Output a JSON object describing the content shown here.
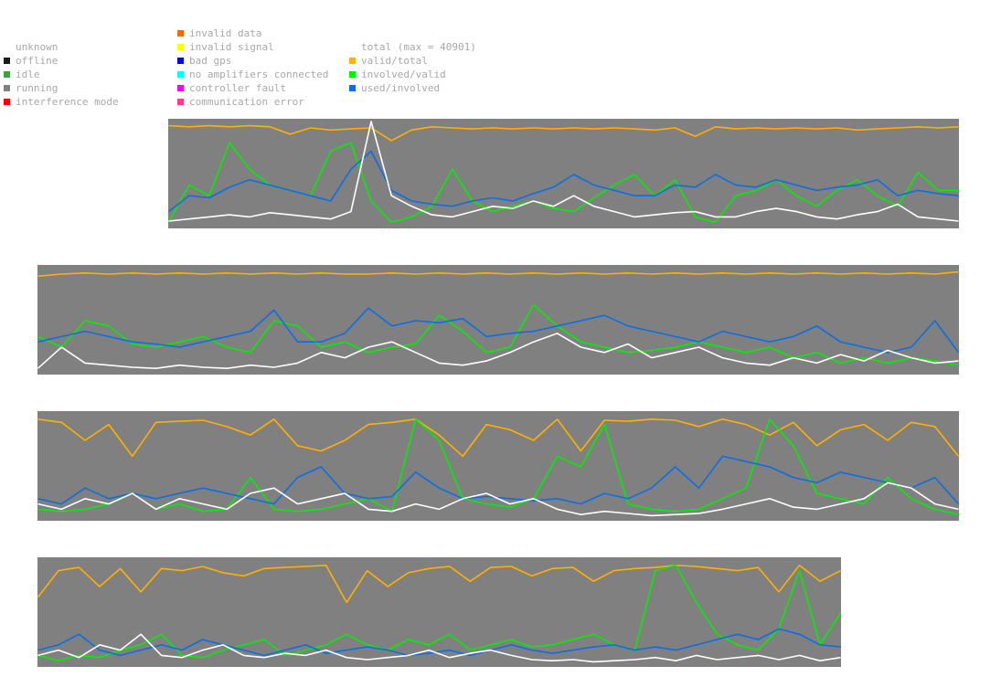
{
  "legend": {
    "status": [
      {
        "label": "unknown",
        "color": "#ffffff"
      },
      {
        "label": "offline",
        "color": "#1a1a1a"
      },
      {
        "label": "idle",
        "color": "#3fa33f"
      },
      {
        "label": "running",
        "color": "#808080"
      },
      {
        "label": "interference mode",
        "color": "#ff0000"
      }
    ],
    "errors": [
      {
        "label": "invalid data",
        "color": "#ff6a00"
      },
      {
        "label": "invalid signal",
        "color": "#ffff00"
      },
      {
        "label": "bad gps",
        "color": "#0000ff"
      },
      {
        "label": "no amplifiers connected",
        "color": "#00ffff"
      },
      {
        "label": "controller fault",
        "color": "#ff00ff"
      },
      {
        "label": "communication error",
        "color": "#ff3c8c"
      }
    ],
    "metrics": [
      {
        "label": "total (max = 40901)",
        "color": "#ffffff"
      },
      {
        "label": "valid/total",
        "color": "#ffb000"
      },
      {
        "label": "involved/valid",
        "color": "#00f000"
      },
      {
        "label": "used/involved",
        "color": "#0a6ee6"
      }
    ]
  },
  "colors": {
    "plot_background": "#808080",
    "total": "#ffffff",
    "valid_total": "#ffb000",
    "involved_valid": "#00f000",
    "used_involved": "#0a6ee6"
  },
  "chart_data": [
    {
      "type": "line",
      "ylim": [
        0,
        1
      ],
      "series": [
        {
          "name": "valid/total",
          "values": [
            0.96,
            0.95,
            0.96,
            0.95,
            0.96,
            0.95,
            0.88,
            0.94,
            0.92,
            0.93,
            0.94,
            0.82,
            0.92,
            0.95,
            0.94,
            0.93,
            0.94,
            0.93,
            0.94,
            0.93,
            0.94,
            0.93,
            0.94,
            0.93,
            0.92,
            0.94,
            0.86,
            0.95,
            0.93,
            0.94,
            0.93,
            0.94,
            0.93,
            0.94,
            0.92,
            0.93,
            0.94,
            0.95,
            0.94,
            0.95
          ]
        },
        {
          "name": "involved/valid",
          "values": [
            0.05,
            0.4,
            0.3,
            0.8,
            0.55,
            0.4,
            0.35,
            0.3,
            0.72,
            0.8,
            0.25,
            0.05,
            0.1,
            0.2,
            0.55,
            0.25,
            0.15,
            0.2,
            0.25,
            0.18,
            0.15,
            0.28,
            0.4,
            0.5,
            0.3,
            0.45,
            0.1,
            0.05,
            0.3,
            0.35,
            0.45,
            0.3,
            0.2,
            0.35,
            0.45,
            0.3,
            0.2,
            0.52,
            0.35,
            0.35
          ]
        },
        {
          "name": "used/involved",
          "values": [
            0.15,
            0.3,
            0.28,
            0.38,
            0.45,
            0.4,
            0.35,
            0.3,
            0.25,
            0.55,
            0.72,
            0.35,
            0.25,
            0.22,
            0.2,
            0.25,
            0.28,
            0.25,
            0.32,
            0.38,
            0.5,
            0.4,
            0.35,
            0.3,
            0.3,
            0.4,
            0.38,
            0.5,
            0.4,
            0.38,
            0.45,
            0.4,
            0.35,
            0.38,
            0.4,
            0.45,
            0.3,
            0.35,
            0.32,
            0.3
          ]
        },
        {
          "name": "total",
          "values": [
            0.06,
            0.08,
            0.1,
            0.12,
            0.1,
            0.14,
            0.12,
            0.1,
            0.08,
            0.15,
            1.0,
            0.3,
            0.2,
            0.12,
            0.1,
            0.15,
            0.2,
            0.18,
            0.25,
            0.2,
            0.3,
            0.2,
            0.15,
            0.1,
            0.12,
            0.14,
            0.15,
            0.1,
            0.1,
            0.15,
            0.18,
            0.15,
            0.1,
            0.08,
            0.12,
            0.15,
            0.22,
            0.1,
            0.08,
            0.06
          ]
        }
      ]
    },
    {
      "type": "line",
      "ylim": [
        0,
        1
      ],
      "series": [
        {
          "name": "valid/total",
          "values": [
            0.92,
            0.94,
            0.95,
            0.94,
            0.95,
            0.94,
            0.95,
            0.94,
            0.95,
            0.94,
            0.95,
            0.94,
            0.95,
            0.94,
            0.94,
            0.95,
            0.94,
            0.95,
            0.94,
            0.95,
            0.94,
            0.95,
            0.94,
            0.95,
            0.94,
            0.95,
            0.94,
            0.95,
            0.94,
            0.95,
            0.94,
            0.95,
            0.94,
            0.95,
            0.94,
            0.95,
            0.94,
            0.95,
            0.94,
            0.96
          ]
        },
        {
          "name": "involved/valid",
          "values": [
            0.35,
            0.25,
            0.5,
            0.45,
            0.28,
            0.25,
            0.3,
            0.35,
            0.25,
            0.2,
            0.5,
            0.45,
            0.25,
            0.3,
            0.2,
            0.25,
            0.28,
            0.55,
            0.4,
            0.2,
            0.25,
            0.65,
            0.45,
            0.3,
            0.25,
            0.2,
            0.22,
            0.25,
            0.3,
            0.25,
            0.2,
            0.25,
            0.15,
            0.2,
            0.1,
            0.15,
            0.1,
            0.15,
            0.12,
            0.08
          ]
        },
        {
          "name": "used/involved",
          "values": [
            0.3,
            0.35,
            0.4,
            0.35,
            0.3,
            0.28,
            0.25,
            0.3,
            0.35,
            0.4,
            0.6,
            0.3,
            0.3,
            0.38,
            0.62,
            0.45,
            0.5,
            0.48,
            0.52,
            0.35,
            0.38,
            0.4,
            0.45,
            0.5,
            0.55,
            0.45,
            0.4,
            0.35,
            0.3,
            0.4,
            0.35,
            0.3,
            0.35,
            0.45,
            0.3,
            0.25,
            0.2,
            0.25,
            0.5,
            0.2
          ]
        },
        {
          "name": "total",
          "values": [
            0.05,
            0.25,
            0.1,
            0.08,
            0.06,
            0.05,
            0.08,
            0.06,
            0.05,
            0.08,
            0.06,
            0.1,
            0.2,
            0.15,
            0.25,
            0.3,
            0.2,
            0.1,
            0.08,
            0.12,
            0.2,
            0.3,
            0.38,
            0.25,
            0.2,
            0.28,
            0.15,
            0.2,
            0.25,
            0.15,
            0.1,
            0.08,
            0.15,
            0.1,
            0.18,
            0.12,
            0.22,
            0.15,
            0.1,
            0.12
          ]
        }
      ]
    },
    {
      "type": "line",
      "ylim": [
        0,
        1
      ],
      "series": [
        {
          "name": "valid/total",
          "values": [
            0.95,
            0.92,
            0.75,
            0.9,
            0.6,
            0.92,
            0.93,
            0.94,
            0.88,
            0.8,
            0.95,
            0.7,
            0.65,
            0.75,
            0.9,
            0.92,
            0.95,
            0.8,
            0.6,
            0.9,
            0.85,
            0.75,
            0.95,
            0.65,
            0.94,
            0.93,
            0.95,
            0.94,
            0.88,
            0.95,
            0.9,
            0.8,
            0.92,
            0.7,
            0.85,
            0.9,
            0.75,
            0.92,
            0.88,
            0.6
          ]
        },
        {
          "name": "involved/valid",
          "values": [
            0.1,
            0.08,
            0.1,
            0.15,
            0.25,
            0.1,
            0.15,
            0.08,
            0.1,
            0.4,
            0.1,
            0.08,
            0.1,
            0.15,
            0.2,
            0.08,
            0.95,
            0.75,
            0.2,
            0.15,
            0.12,
            0.2,
            0.6,
            0.5,
            0.9,
            0.15,
            0.1,
            0.08,
            0.1,
            0.2,
            0.3,
            0.95,
            0.7,
            0.25,
            0.2,
            0.15,
            0.4,
            0.2,
            0.1,
            0.05
          ]
        },
        {
          "name": "used/involved",
          "values": [
            0.2,
            0.15,
            0.3,
            0.2,
            0.25,
            0.2,
            0.25,
            0.3,
            0.25,
            0.2,
            0.15,
            0.4,
            0.5,
            0.25,
            0.2,
            0.22,
            0.45,
            0.3,
            0.2,
            0.22,
            0.2,
            0.18,
            0.2,
            0.15,
            0.25,
            0.2,
            0.3,
            0.5,
            0.3,
            0.6,
            0.55,
            0.5,
            0.4,
            0.35,
            0.45,
            0.4,
            0.35,
            0.3,
            0.4,
            0.15
          ]
        },
        {
          "name": "total",
          "values": [
            0.15,
            0.1,
            0.2,
            0.15,
            0.25,
            0.1,
            0.2,
            0.15,
            0.1,
            0.25,
            0.3,
            0.15,
            0.2,
            0.25,
            0.1,
            0.08,
            0.15,
            0.1,
            0.2,
            0.25,
            0.15,
            0.2,
            0.1,
            0.05,
            0.08,
            0.06,
            0.04,
            0.05,
            0.06,
            0.1,
            0.15,
            0.2,
            0.12,
            0.1,
            0.15,
            0.2,
            0.35,
            0.3,
            0.15,
            0.1
          ]
        }
      ]
    },
    {
      "type": "line",
      "ylim": [
        0,
        1
      ],
      "series": [
        {
          "name": "valid/total",
          "values": [
            0.65,
            0.9,
            0.93,
            0.75,
            0.92,
            0.7,
            0.92,
            0.9,
            0.94,
            0.88,
            0.85,
            0.92,
            0.93,
            0.94,
            0.95,
            0.6,
            0.9,
            0.75,
            0.88,
            0.92,
            0.94,
            0.8,
            0.93,
            0.94,
            0.85,
            0.92,
            0.93,
            0.8,
            0.9,
            0.92,
            0.93,
            0.95,
            0.94,
            0.92,
            0.9,
            0.93,
            0.7,
            0.95,
            0.8,
            0.9
          ]
        },
        {
          "name": "involved/valid",
          "values": [
            0.1,
            0.05,
            0.1,
            0.08,
            0.15,
            0.2,
            0.3,
            0.1,
            0.08,
            0.15,
            0.2,
            0.25,
            0.1,
            0.15,
            0.2,
            0.3,
            0.2,
            0.15,
            0.25,
            0.2,
            0.3,
            0.15,
            0.2,
            0.25,
            0.18,
            0.2,
            0.25,
            0.3,
            0.2,
            0.15,
            0.9,
            0.95,
            0.6,
            0.3,
            0.2,
            0.15,
            0.35,
            0.9,
            0.2,
            0.5
          ]
        },
        {
          "name": "used/involved",
          "values": [
            0.15,
            0.2,
            0.3,
            0.15,
            0.1,
            0.15,
            0.2,
            0.15,
            0.25,
            0.2,
            0.15,
            0.1,
            0.15,
            0.2,
            0.12,
            0.15,
            0.18,
            0.15,
            0.1,
            0.12,
            0.15,
            0.1,
            0.15,
            0.2,
            0.15,
            0.12,
            0.15,
            0.18,
            0.2,
            0.15,
            0.18,
            0.15,
            0.2,
            0.25,
            0.3,
            0.25,
            0.35,
            0.3,
            0.2,
            0.18
          ]
        },
        {
          "name": "total",
          "values": [
            0.1,
            0.15,
            0.08,
            0.2,
            0.15,
            0.3,
            0.1,
            0.08,
            0.15,
            0.2,
            0.1,
            0.08,
            0.12,
            0.1,
            0.15,
            0.08,
            0.06,
            0.08,
            0.1,
            0.15,
            0.08,
            0.12,
            0.15,
            0.1,
            0.06,
            0.05,
            0.06,
            0.04,
            0.05,
            0.06,
            0.08,
            0.05,
            0.1,
            0.06,
            0.08,
            0.1,
            0.06,
            0.1,
            0.05,
            0.08
          ]
        }
      ]
    }
  ]
}
